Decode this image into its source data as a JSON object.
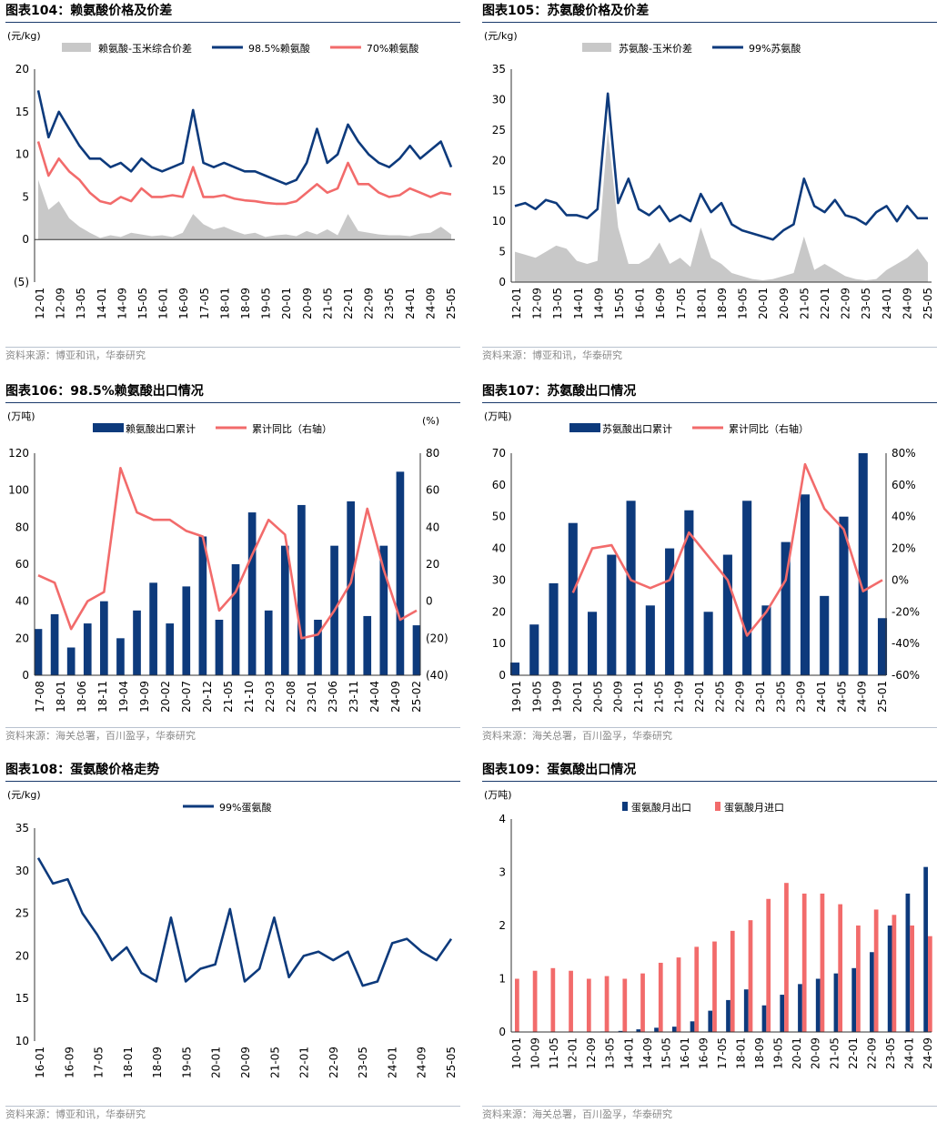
{
  "colors": {
    "navy": "#0d3a7c",
    "red": "#f26b6b",
    "gray": "#c8c8c8",
    "rule": "#1a3a6b"
  },
  "charts": [
    {
      "id": "c104",
      "title": "图表104：赖氨酸价格及价差",
      "source": "资料来源：博亚和讯，华泰研究",
      "unit_left": "(元/kg)",
      "legend": [
        {
          "label": "赖氨酸-玉米综合价差",
          "kind": "area",
          "color": "#c8c8c8"
        },
        {
          "label": "98.5%赖氨酸",
          "kind": "line",
          "color": "#0d3a7c"
        },
        {
          "label": "70%赖氨酸",
          "kind": "line",
          "color": "#f26b6b"
        }
      ],
      "y_ticks": [
        "20",
        "15",
        "10",
        "5",
        "0",
        "(5)"
      ],
      "x_ticks": [
        "12-01",
        "12-09",
        "13-05",
        "14-01",
        "14-09",
        "15-05",
        "16-01",
        "16-09",
        "17-05",
        "18-01",
        "18-09",
        "19-05",
        "20-01",
        "20-09",
        "21-05",
        "22-01",
        "22-09",
        "23-05",
        "24-01",
        "24-09",
        "25-05"
      ]
    },
    {
      "id": "c105",
      "title": "图表105：苏氨酸价格及价差",
      "source": "资料来源：博亚和讯，华泰研究",
      "unit_left": "(元/kg)",
      "legend": [
        {
          "label": "苏氨酸-玉米价差",
          "kind": "area",
          "color": "#c8c8c8"
        },
        {
          "label": "99%苏氨酸",
          "kind": "line",
          "color": "#0d3a7c"
        }
      ],
      "y_ticks": [
        "35",
        "30",
        "25",
        "20",
        "15",
        "10",
        "5",
        "0"
      ],
      "x_ticks": [
        "12-01",
        "12-09",
        "13-05",
        "14-01",
        "14-09",
        "15-05",
        "16-01",
        "16-09",
        "17-05",
        "18-01",
        "18-09",
        "19-05",
        "20-01",
        "20-09",
        "21-05",
        "22-01",
        "22-09",
        "23-05",
        "24-01",
        "24-09",
        "25-05"
      ]
    },
    {
      "id": "c106",
      "title": "图表106：98.5%赖氨酸出口情况",
      "source": "资料来源：海关总署，百川盈孚，华泰研究",
      "unit_left": "(万吨)",
      "unit_right": "(%)",
      "legend": [
        {
          "label": "赖氨酸出口累计",
          "kind": "bar",
          "color": "#0d3a7c"
        },
        {
          "label": "累计同比（右轴）",
          "kind": "line",
          "color": "#f26b6b"
        }
      ],
      "y_ticks": [
        "120",
        "100",
        "80",
        "60",
        "40",
        "20",
        "0"
      ],
      "y2_ticks": [
        "80",
        "60",
        "40",
        "20",
        "0",
        "(20)",
        "(40)"
      ],
      "x_ticks": [
        "17-08",
        "18-01",
        "18-06",
        "18-11",
        "19-04",
        "19-09",
        "20-02",
        "20-07",
        "20-12",
        "21-05",
        "21-10",
        "22-03",
        "22-08",
        "23-01",
        "23-06",
        "23-11",
        "24-04",
        "24-09",
        "25-02"
      ]
    },
    {
      "id": "c107",
      "title": "图表107：苏氨酸出口情况",
      "source": "资料来源：海关总署，百川盈孚，华泰研究",
      "unit_left": "(万吨)",
      "legend": [
        {
          "label": "苏氨酸出口累计",
          "kind": "bar",
          "color": "#0d3a7c"
        },
        {
          "label": "累计同比（右轴）",
          "kind": "line",
          "color": "#f26b6b"
        }
      ],
      "y_ticks": [
        "70",
        "60",
        "50",
        "40",
        "30",
        "20",
        "10",
        "0"
      ],
      "y2_ticks": [
        "80%",
        "60%",
        "40%",
        "20%",
        "0%",
        "-20%",
        "-40%",
        "-60%"
      ],
      "x_ticks": [
        "19-01",
        "19-05",
        "19-09",
        "20-01",
        "20-05",
        "20-09",
        "21-01",
        "21-05",
        "21-09",
        "22-01",
        "22-05",
        "22-09",
        "23-01",
        "23-05",
        "23-09",
        "24-01",
        "24-05",
        "24-09",
        "25-01"
      ]
    },
    {
      "id": "c108",
      "title": "图表108：蛋氨酸价格走势",
      "source": "资料来源：博亚和讯，华泰研究",
      "unit_left": "(元/kg)",
      "legend": [
        {
          "label": "99%蛋氨酸",
          "kind": "line",
          "color": "#0d3a7c"
        }
      ],
      "y_ticks": [
        "35",
        "30",
        "25",
        "20",
        "15",
        "10"
      ],
      "x_ticks": [
        "16-01",
        "16-09",
        "17-05",
        "18-01",
        "18-09",
        "19-05",
        "20-01",
        "20-09",
        "21-05",
        "22-01",
        "22-09",
        "23-05",
        "24-01",
        "24-09",
        "25-05"
      ]
    },
    {
      "id": "c109",
      "title": "图表109：蛋氨酸出口情况",
      "source": "资料来源：海关总署，百川盈孚，华泰研究",
      "unit_left": "(万吨)",
      "legend": [
        {
          "label": "蛋氨酸月出口",
          "kind": "bar",
          "color": "#0d3a7c"
        },
        {
          "label": "蛋氨酸月进口",
          "kind": "bar",
          "color": "#f26b6b"
        }
      ],
      "y_ticks": [
        "4",
        "3",
        "2",
        "1",
        "0"
      ],
      "x_ticks": [
        "10-01",
        "10-09",
        "11-05",
        "12-01",
        "12-09",
        "13-05",
        "14-01",
        "14-09",
        "15-05",
        "16-01",
        "16-09",
        "17-05",
        "18-01",
        "18-09",
        "19-05",
        "20-01",
        "20-09",
        "21-05",
        "22-01",
        "22-09",
        "23-05",
        "24-01",
        "24-09"
      ]
    }
  ],
  "chart_data": [
    {
      "type": "line",
      "title": "赖氨酸价格及价差",
      "ylabel": "元/kg",
      "ylim": [
        -5,
        20
      ],
      "x": [
        "12-01",
        "12-05",
        "12-09",
        "13-01",
        "13-05",
        "13-09",
        "14-01",
        "14-05",
        "14-09",
        "15-01",
        "15-05",
        "15-09",
        "16-01",
        "16-05",
        "16-09",
        "17-01",
        "17-05",
        "17-09",
        "18-01",
        "18-05",
        "18-09",
        "19-01",
        "19-05",
        "19-09",
        "20-01",
        "20-05",
        "20-09",
        "21-01",
        "21-05",
        "21-09",
        "22-01",
        "22-05",
        "22-09",
        "23-01",
        "23-05",
        "23-09",
        "24-01",
        "24-05",
        "24-09",
        "25-01",
        "25-05"
      ],
      "series": [
        {
          "name": "赖氨酸-玉米综合价差",
          "kind": "area",
          "values": [
            7.0,
            3.5,
            4.5,
            2.5,
            1.5,
            0.8,
            0.2,
            0.5,
            0.3,
            0.8,
            0.6,
            0.4,
            0.5,
            0.3,
            0.8,
            3.0,
            1.8,
            1.2,
            1.5,
            1.0,
            0.6,
            0.8,
            0.3,
            0.5,
            0.6,
            0.4,
            1.0,
            0.6,
            1.2,
            0.5,
            3.0,
            1.0,
            0.8,
            0.6,
            0.5,
            0.5,
            0.4,
            0.7,
            0.8,
            1.5,
            0.6
          ]
        },
        {
          "name": "98.5%赖氨酸",
          "kind": "line",
          "values": [
            17.5,
            12.0,
            15.0,
            13.0,
            11.0,
            9.5,
            9.5,
            8.5,
            9.0,
            8.0,
            9.5,
            8.5,
            8.0,
            8.5,
            9.0,
            15.2,
            9.0,
            8.5,
            9.0,
            8.5,
            8.0,
            8.0,
            7.5,
            7.0,
            6.5,
            7.0,
            9.0,
            13.0,
            9.0,
            10.0,
            13.5,
            11.5,
            10.0,
            9.0,
            8.5,
            9.5,
            11.0,
            9.5,
            10.5,
            11.5,
            8.5
          ]
        },
        {
          "name": "70%赖氨酸",
          "kind": "line",
          "values": [
            11.5,
            7.5,
            9.5,
            8.0,
            7.0,
            5.5,
            4.5,
            4.2,
            5.0,
            4.5,
            6.0,
            5.0,
            5.0,
            5.2,
            5.0,
            8.5,
            5.0,
            5.0,
            5.2,
            4.8,
            4.6,
            4.5,
            4.3,
            4.2,
            4.2,
            4.5,
            5.5,
            6.5,
            5.5,
            6.0,
            9.0,
            6.5,
            6.5,
            5.5,
            5.0,
            5.2,
            6.0,
            5.5,
            5.0,
            5.5,
            5.3
          ]
        }
      ]
    },
    {
      "type": "line",
      "title": "苏氨酸价格及价差",
      "ylabel": "元/kg",
      "ylim": [
        0,
        35
      ],
      "x": [
        "12-01",
        "12-05",
        "12-09",
        "13-01",
        "13-05",
        "13-09",
        "14-01",
        "14-05",
        "14-09",
        "15-01",
        "15-05",
        "15-09",
        "16-01",
        "16-05",
        "16-09",
        "17-01",
        "17-05",
        "17-09",
        "18-01",
        "18-05",
        "18-09",
        "19-01",
        "19-05",
        "19-09",
        "20-01",
        "20-05",
        "20-09",
        "21-01",
        "21-05",
        "21-09",
        "22-01",
        "22-05",
        "22-09",
        "23-01",
        "23-05",
        "23-09",
        "24-01",
        "24-05",
        "24-09",
        "25-01",
        "25-05"
      ],
      "series": [
        {
          "name": "苏氨酸-玉米价差",
          "kind": "area",
          "values": [
            5.0,
            4.5,
            4.0,
            5.0,
            6.0,
            5.5,
            3.5,
            3.0,
            3.5,
            25.0,
            9.0,
            3.0,
            3.0,
            4.0,
            6.5,
            3.0,
            4.0,
            2.5,
            9.0,
            4.0,
            3.0,
            1.5,
            1.0,
            0.5,
            0.3,
            0.5,
            1.0,
            1.5,
            7.5,
            2.0,
            3.0,
            2.0,
            1.0,
            0.5,
            0.3,
            0.5,
            2.0,
            3.0,
            4.0,
            5.5,
            3.2
          ]
        },
        {
          "name": "99%苏氨酸",
          "kind": "line",
          "values": [
            12.5,
            13.0,
            12.0,
            13.5,
            13.0,
            11.0,
            11.0,
            10.5,
            12.0,
            31.0,
            13.0,
            17.0,
            12.0,
            11.0,
            12.5,
            10.0,
            11.0,
            10.0,
            14.5,
            11.5,
            13.0,
            9.5,
            8.5,
            8.0,
            7.5,
            7.0,
            8.5,
            9.5,
            17.0,
            12.5,
            11.5,
            13.5,
            11.0,
            10.5,
            9.5,
            11.5,
            12.5,
            10.0,
            12.5,
            10.5,
            10.5
          ]
        }
      ]
    },
    {
      "type": "bar",
      "title": "98.5%赖氨酸出口情况",
      "ylabel": "万吨",
      "ylim": [
        0,
        120
      ],
      "y2label": "%",
      "y2lim": [
        -40,
        80
      ],
      "x": [
        "17-08",
        "17-12",
        "18-04",
        "18-08",
        "18-12",
        "19-04",
        "19-08",
        "19-12",
        "20-04",
        "20-08",
        "20-12",
        "21-04",
        "21-08",
        "21-12",
        "22-04",
        "22-08",
        "22-12",
        "23-04",
        "23-08",
        "23-12",
        "24-04",
        "24-08",
        "24-12",
        "25-03"
      ],
      "series": [
        {
          "name": "赖氨酸出口累计",
          "kind": "bar",
          "axis": "left",
          "values": [
            25,
            33,
            15,
            28,
            40,
            20,
            35,
            50,
            28,
            48,
            75,
            30,
            60,
            88,
            35,
            70,
            92,
            30,
            70,
            94,
            32,
            70,
            110,
            27
          ]
        },
        {
          "name": "累计同比（右轴）",
          "kind": "line",
          "axis": "right",
          "values": [
            14,
            10,
            -15,
            0,
            5,
            72,
            48,
            44,
            44,
            38,
            35,
            -5,
            5,
            25,
            44,
            36,
            -20,
            -18,
            -5,
            10,
            50,
            17,
            -10,
            -5
          ]
        }
      ]
    },
    {
      "type": "bar",
      "title": "苏氨酸出口情况",
      "ylabel": "万吨",
      "ylim": [
        0,
        70
      ],
      "y2label": "%",
      "y2lim": [
        -60,
        80
      ],
      "x": [
        "19-01",
        "19-05",
        "19-09",
        "20-01",
        "20-05",
        "20-09",
        "21-01",
        "21-05",
        "21-09",
        "22-01",
        "22-05",
        "22-09",
        "23-01",
        "23-05",
        "23-09",
        "24-01",
        "24-05",
        "24-09",
        "25-01",
        "25-03"
      ],
      "series": [
        {
          "name": "苏氨酸出口累计",
          "kind": "bar",
          "axis": "left",
          "values": [
            4,
            16,
            29,
            48,
            20,
            38,
            55,
            22,
            40,
            52,
            20,
            38,
            55,
            22,
            42,
            57,
            25,
            50,
            70,
            18
          ]
        },
        {
          "name": "累计同比（右轴）",
          "kind": "line",
          "axis": "right",
          "values": [
            null,
            null,
            null,
            -8,
            20,
            22,
            0,
            -5,
            0,
            30,
            15,
            0,
            -35,
            -20,
            0,
            73,
            45,
            32,
            -7,
            0
          ]
        }
      ]
    },
    {
      "type": "line",
      "title": "蛋氨酸价格走势",
      "ylabel": "元/kg",
      "ylim": [
        10,
        35
      ],
      "x": [
        "16-01",
        "16-05",
        "16-09",
        "17-01",
        "17-05",
        "17-09",
        "18-01",
        "18-05",
        "18-09",
        "19-01",
        "19-05",
        "19-09",
        "20-01",
        "20-05",
        "20-09",
        "21-01",
        "21-05",
        "21-09",
        "22-01",
        "22-05",
        "22-09",
        "23-01",
        "23-05",
        "23-09",
        "24-01",
        "24-05",
        "24-09",
        "25-01",
        "25-05"
      ],
      "series": [
        {
          "name": "99%蛋氨酸",
          "kind": "line",
          "values": [
            31.5,
            28.5,
            29.0,
            25.0,
            22.5,
            19.5,
            21.0,
            18.0,
            17.0,
            24.5,
            17.0,
            18.5,
            19.0,
            25.5,
            17.0,
            18.5,
            24.5,
            17.5,
            20.0,
            20.5,
            19.5,
            20.5,
            16.5,
            17.0,
            21.5,
            22.0,
            20.5,
            19.5,
            22.0
          ]
        }
      ]
    },
    {
      "type": "bar",
      "title": "蛋氨酸出口情况",
      "ylabel": "万吨",
      "ylim": [
        0,
        4
      ],
      "x": [
        "10-01",
        "10-09",
        "11-05",
        "12-01",
        "12-09",
        "13-05",
        "14-01",
        "14-09",
        "15-05",
        "16-01",
        "16-09",
        "17-05",
        "18-01",
        "18-09",
        "19-05",
        "20-01",
        "20-09",
        "21-05",
        "22-01",
        "22-09",
        "23-05",
        "24-01",
        "24-09",
        "25-03"
      ],
      "series": [
        {
          "name": "蛋氨酸月出口",
          "kind": "bar",
          "values": [
            0.0,
            0.0,
            0.0,
            0.0,
            0.0,
            0.01,
            0.02,
            0.05,
            0.08,
            0.1,
            0.2,
            0.4,
            0.6,
            0.8,
            0.5,
            0.7,
            0.9,
            1.0,
            1.1,
            1.2,
            1.5,
            2.0,
            2.6,
            3.1
          ]
        },
        {
          "name": "蛋氨酸月进口",
          "kind": "bar",
          "values": [
            1.0,
            1.15,
            1.2,
            1.15,
            1.0,
            1.05,
            1.0,
            1.1,
            1.3,
            1.4,
            1.6,
            1.7,
            1.9,
            2.1,
            2.5,
            2.8,
            2.6,
            2.6,
            2.4,
            2.0,
            2.3,
            2.2,
            2.0,
            1.8
          ]
        }
      ]
    }
  ]
}
